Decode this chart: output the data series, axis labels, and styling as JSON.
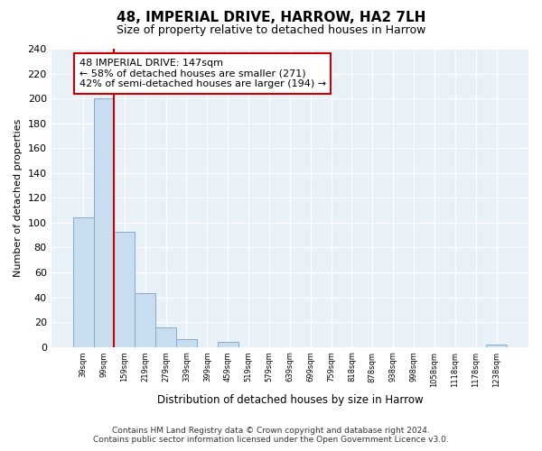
{
  "title": "48, IMPERIAL DRIVE, HARROW, HA2 7LH",
  "subtitle": "Size of property relative to detached houses in Harrow",
  "xlabel": "Distribution of detached houses by size in Harrow",
  "ylabel": "Number of detached properties",
  "bar_labels": [
    "39sqm",
    "99sqm",
    "159sqm",
    "219sqm",
    "279sqm",
    "339sqm",
    "399sqm",
    "459sqm",
    "519sqm",
    "579sqm",
    "639sqm",
    "699sqm",
    "759sqm",
    "818sqm",
    "878sqm",
    "938sqm",
    "998sqm",
    "1058sqm",
    "1118sqm",
    "1178sqm",
    "1238sqm"
  ],
  "bar_values": [
    104,
    200,
    93,
    43,
    16,
    6,
    0,
    4,
    0,
    0,
    0,
    0,
    0,
    0,
    0,
    0,
    0,
    0,
    0,
    0,
    2
  ],
  "bar_color": "#c8ddf0",
  "bar_edge_color": "#88aacc",
  "vline_x": 2,
  "vline_color": "#cc0000",
  "annotation_title": "48 IMPERIAL DRIVE: 147sqm",
  "annotation_line1": "← 58% of detached houses are smaller (271)",
  "annotation_line2": "42% of semi-detached houses are larger (194) →",
  "ylim": [
    0,
    240
  ],
  "yticks": [
    0,
    20,
    40,
    60,
    80,
    100,
    120,
    140,
    160,
    180,
    200,
    220,
    240
  ],
  "footer_line1": "Contains HM Land Registry data © Crown copyright and database right 2024.",
  "footer_line2": "Contains public sector information licensed under the Open Government Licence v3.0.",
  "bg_color": "#ffffff",
  "plot_bg_color": "#e8f0f8",
  "grid_color": "#ffffff"
}
